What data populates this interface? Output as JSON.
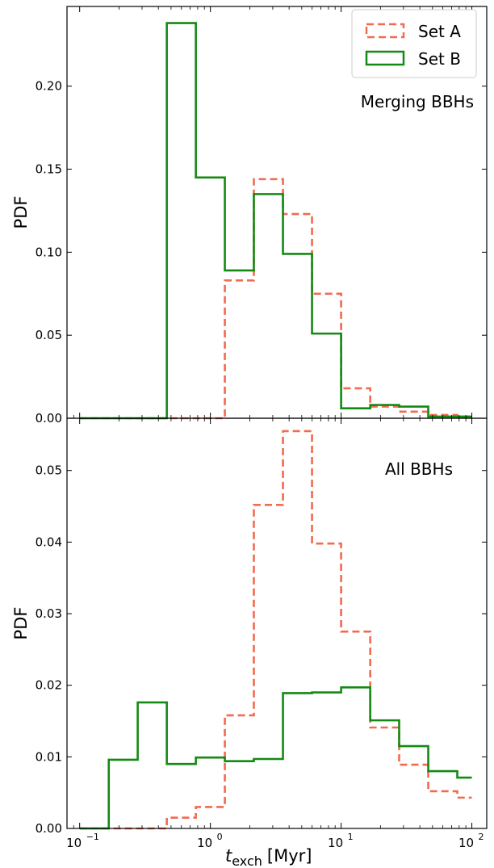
{
  "figure": {
    "x_label_main": "t",
    "x_label_sub": "exch",
    "x_label_unit": "[Myr]",
    "x_tick_labels": [
      "10",
      "10",
      "10",
      "10"
    ],
    "x_tick_exponents": [
      "−1",
      "0",
      "1",
      "2"
    ]
  },
  "legend": {
    "set_a": "Set A",
    "set_b": "Set B"
  },
  "colors": {
    "set_a": "#f26a4f",
    "set_b": "#138a13"
  },
  "chart_data": [
    {
      "type": "histogram-step",
      "title": "",
      "annotation": "Merging BBHs",
      "xlabel": "t_exch [Myr]",
      "ylabel": "PDF",
      "xscale": "log",
      "xlim": [
        0.08,
        130
      ],
      "ylim": [
        0,
        0.248
      ],
      "yticks": [
        0.0,
        0.05,
        0.1,
        0.15,
        0.2
      ],
      "ytick_labels": [
        "0.00",
        "0.05",
        "0.10",
        "0.15",
        "0.20"
      ],
      "legend_position": "top-right",
      "bin_edges": [
        0.1,
        0.167,
        0.278,
        0.464,
        0.774,
        1.29,
        2.15,
        3.59,
        5.99,
        10.0,
        16.7,
        27.8,
        46.4,
        77.4,
        100
      ],
      "series": [
        {
          "name": "Set A",
          "style": "dashed",
          "values": [
            0.0,
            0.0,
            0.0,
            0.0,
            0.0,
            0.083,
            0.144,
            0.123,
            0.075,
            0.018,
            0.007,
            0.004,
            0.002,
            0.001
          ]
        },
        {
          "name": "Set B",
          "style": "solid",
          "values": [
            0.0,
            0.0,
            0.0,
            0.238,
            0.145,
            0.089,
            0.135,
            0.099,
            0.051,
            0.006,
            0.008,
            0.007,
            0.001,
            0.001
          ]
        }
      ]
    },
    {
      "type": "histogram-step",
      "title": "",
      "annotation": "All BBHs",
      "xlabel": "t_exch [Myr]",
      "ylabel": "PDF",
      "xscale": "log",
      "xlim": [
        0.08,
        130
      ],
      "ylim": [
        0,
        0.0573
      ],
      "yticks": [
        0.0,
        0.01,
        0.02,
        0.03,
        0.04,
        0.05
      ],
      "ytick_labels": [
        "0.00",
        "0.01",
        "0.02",
        "0.03",
        "0.04",
        "0.05"
      ],
      "bin_edges": [
        0.1,
        0.167,
        0.278,
        0.464,
        0.774,
        1.29,
        2.15,
        3.59,
        5.99,
        10.0,
        16.7,
        27.8,
        46.4,
        77.4,
        100
      ],
      "series": [
        {
          "name": "Set A",
          "style": "dashed",
          "values": [
            0.0,
            0.0,
            0.0,
            0.0015,
            0.003,
            0.0158,
            0.0452,
            0.0555,
            0.0398,
            0.0275,
            0.0141,
            0.0089,
            0.0052,
            0.0043
          ]
        },
        {
          "name": "Set B",
          "style": "solid",
          "values": [
            0.0,
            0.0096,
            0.0176,
            0.009,
            0.0099,
            0.0094,
            0.0097,
            0.0189,
            0.019,
            0.0197,
            0.0151,
            0.0115,
            0.008,
            0.0071
          ]
        }
      ]
    }
  ]
}
